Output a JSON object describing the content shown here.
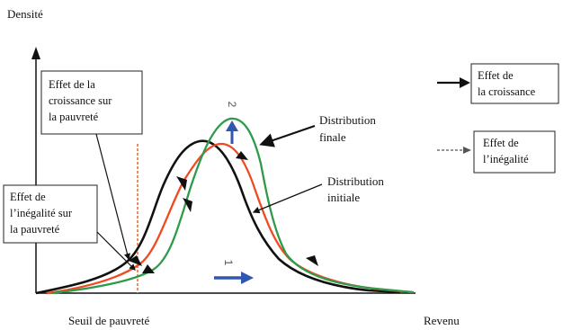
{
  "axis": {
    "ylabel": "Densité",
    "xlabel": "Revenu",
    "threshold_label": "Seuil de pauvreté"
  },
  "boxes": {
    "growth_effect_poverty": [
      "Effet de la",
      "croissance sur",
      "la pauvreté"
    ],
    "inequality_effect_poverty": [
      "Effet de",
      "l’inégalité sur",
      "la pauvreté"
    ],
    "legend_growth": [
      "Effet de",
      "la croissance"
    ],
    "legend_inequality": [
      "Effet de",
      "l’inégalité"
    ]
  },
  "labels": {
    "final_distribution": [
      "Distribution",
      "finale"
    ],
    "initial_distribution": [
      "Distribution",
      "initiale"
    ]
  },
  "markers": {
    "top_number": "2",
    "bottom_number": "1"
  },
  "colors": {
    "initial": "#111111",
    "intermediate": "#f04a23",
    "final": "#2f9a4a",
    "threshold": "#e8703a",
    "shift_arrow": "#2f56b0"
  }
}
